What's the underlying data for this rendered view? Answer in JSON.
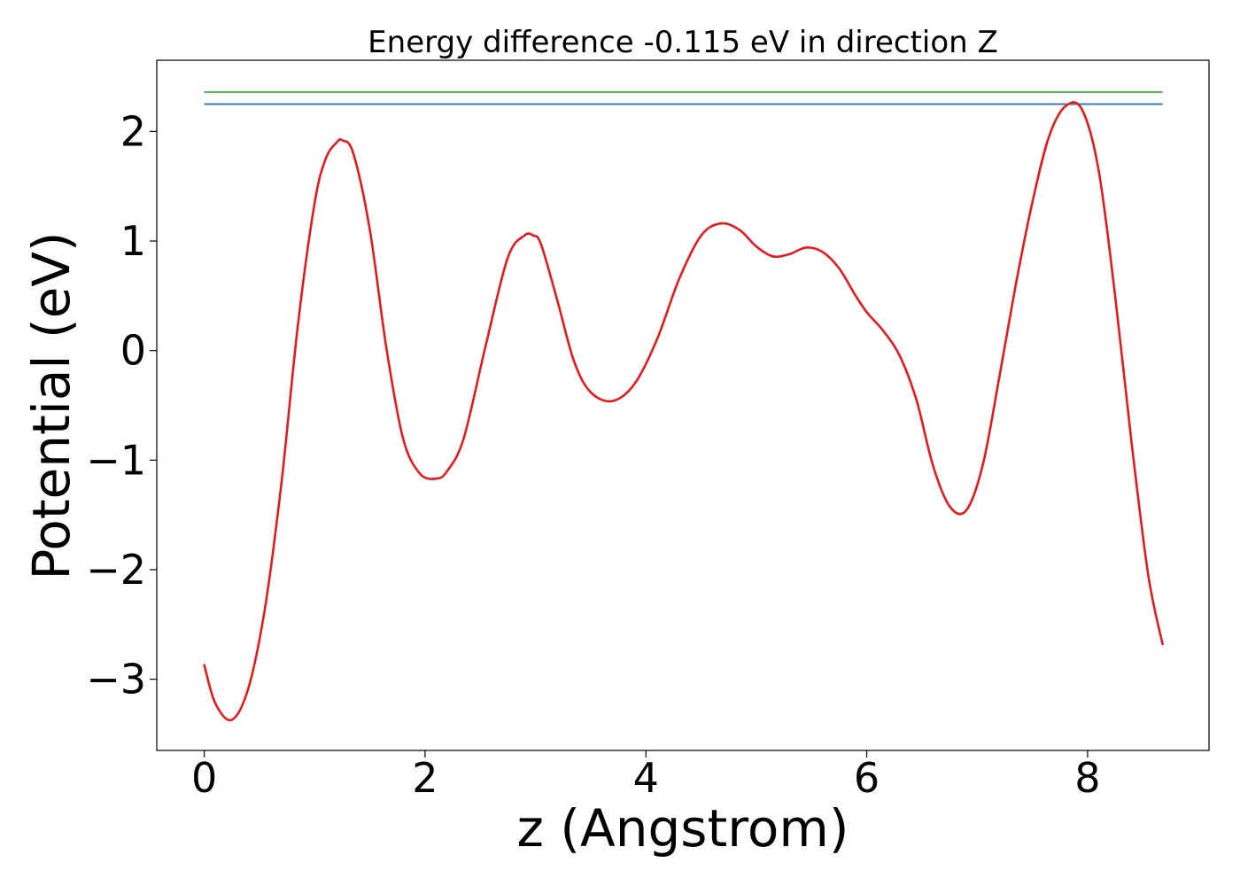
{
  "chart_data": {
    "type": "line",
    "title": "Energy difference -0.115 eV in direction Z",
    "xlabel": "z (Angstrom)",
    "ylabel": "Potential (eV)",
    "xlim": [
      -0.43,
      9.1
    ],
    "ylim": [
      -3.65,
      2.65
    ],
    "grid": false,
    "x_ticks": [
      0,
      2,
      4,
      6,
      8
    ],
    "x_tick_labels": [
      "0",
      "2",
      "4",
      "6",
      "8"
    ],
    "y_ticks": [
      2,
      1,
      0,
      -1,
      -2,
      -3
    ],
    "y_tick_labels": [
      "2",
      "1",
      "0",
      "−1",
      "−2",
      "−3"
    ],
    "series": [
      {
        "color": "#e41a1c",
        "x": [
          0,
          0.1,
          0.25,
          0.4,
          0.55,
          0.7,
          0.85,
          1.0,
          1.1,
          1.2,
          1.25,
          1.35,
          1.5,
          1.65,
          1.8,
          1.95,
          2.1,
          2.2,
          2.35,
          2.55,
          2.75,
          2.9,
          2.98,
          3.05,
          3.2,
          3.35,
          3.5,
          3.7,
          3.9,
          4.1,
          4.3,
          4.5,
          4.68,
          4.85,
          5.0,
          5.15,
          5.3,
          5.45,
          5.6,
          5.75,
          5.9,
          6.0,
          6.15,
          6.3,
          6.45,
          6.6,
          6.75,
          6.9,
          7.05,
          7.2,
          7.35,
          7.5,
          7.65,
          7.8,
          7.95,
          8.1,
          8.25,
          8.4,
          8.55,
          8.68
        ],
        "y": [
          -2.87,
          -3.22,
          -3.37,
          -3.08,
          -2.35,
          -1.2,
          0.25,
          1.35,
          1.75,
          1.9,
          1.92,
          1.8,
          1.1,
          0.02,
          -0.8,
          -1.12,
          -1.17,
          -1.1,
          -0.8,
          0.05,
          0.85,
          1.05,
          1.05,
          0.97,
          0.45,
          -0.1,
          -0.38,
          -0.46,
          -0.3,
          0.1,
          0.65,
          1.05,
          1.16,
          1.1,
          0.95,
          0.86,
          0.88,
          0.94,
          0.9,
          0.75,
          0.5,
          0.35,
          0.18,
          -0.05,
          -0.45,
          -1.05,
          -1.42,
          -1.46,
          -1.05,
          -0.25,
          0.6,
          1.35,
          1.95,
          2.23,
          2.2,
          1.65,
          0.5,
          -0.85,
          -2.05,
          -2.68
        ]
      }
    ],
    "reference_lines": [
      {
        "y": 2.36,
        "color": "#4daf4a",
        "x_range": [
          0,
          8.68
        ]
      },
      {
        "y": 2.25,
        "color": "#377eb8",
        "x_range": [
          0,
          8.68
        ]
      }
    ]
  }
}
